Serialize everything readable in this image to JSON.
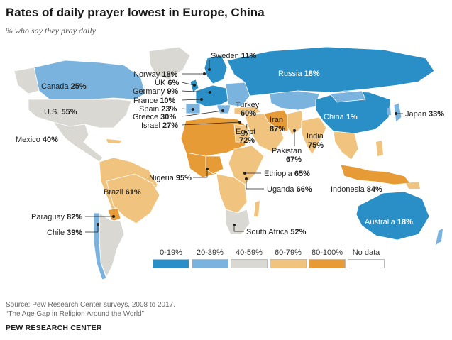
{
  "title": "Rates of daily prayer lowest in Europe, China",
  "subtitle": "% who say they pray daily",
  "colors": {
    "b0_19": "#2a8fc6",
    "b20_39": "#7ab3dd",
    "b40_59": "#d9d8d2",
    "b60_79": "#f0c47f",
    "b80_100": "#e69b36",
    "nodata": "#ffffff"
  },
  "legend": [
    {
      "label": "0-19%",
      "color_key": "b0_19"
    },
    {
      "label": "20-39%",
      "color_key": "b20_39"
    },
    {
      "label": "40-59%",
      "color_key": "b40_59"
    },
    {
      "label": "60-79%",
      "color_key": "b60_79"
    },
    {
      "label": "80-100%",
      "color_key": "b80_100"
    },
    {
      "label": "No data",
      "color_key": "nodata"
    }
  ],
  "countries": {
    "canada": {
      "name": "Canada",
      "value": "25%"
    },
    "us": {
      "name": "U.S.",
      "value": "55%"
    },
    "mexico": {
      "name": "Mexico",
      "value": "40%"
    },
    "brazil": {
      "name": "Brazil",
      "value": "61%"
    },
    "paraguay": {
      "name": "Paraguay",
      "value": "82%"
    },
    "chile": {
      "name": "Chile",
      "value": "39%"
    },
    "sweden": {
      "name": "Sweden",
      "value": "11%"
    },
    "norway": {
      "name": "Norway",
      "value": "18%"
    },
    "uk": {
      "name": "UK",
      "value": "6%"
    },
    "germany": {
      "name": "Germany",
      "value": "9%"
    },
    "france": {
      "name": "France",
      "value": "10%"
    },
    "spain": {
      "name": "Spain",
      "value": "23%"
    },
    "greece": {
      "name": "Greece",
      "value": "30%"
    },
    "israel": {
      "name": "Israel",
      "value": "27%"
    },
    "russia": {
      "name": "Russia",
      "value": "18%"
    },
    "turkey": {
      "name": "Turkey",
      "value": "60%"
    },
    "egypt": {
      "name": "Egypt",
      "value": "72%"
    },
    "iran": {
      "name": "Iran",
      "value": "87%"
    },
    "pakistan": {
      "name": "Pakistan",
      "value": "67%"
    },
    "india": {
      "name": "India",
      "value": "75%"
    },
    "china": {
      "name": "China",
      "value": "1%"
    },
    "japan": {
      "name": "Japan",
      "value": "33%"
    },
    "nigeria": {
      "name": "Nigeria",
      "value": "95%"
    },
    "ethiopia": {
      "name": "Ethiopia",
      "value": "65%"
    },
    "uganda": {
      "name": "Uganda",
      "value": "66%"
    },
    "indonesia": {
      "name": "Indonesia",
      "value": "84%"
    },
    "south_africa": {
      "name": "South Africa",
      "value": "52%"
    },
    "australia": {
      "name": "Australia",
      "value": "18%"
    }
  },
  "source_line1": "Source: Pew Research Center surveys, 2008 to 2017.",
  "source_line2": "“The Age Gap in Religion Around the World”",
  "org": "PEW RESEARCH CENTER"
}
